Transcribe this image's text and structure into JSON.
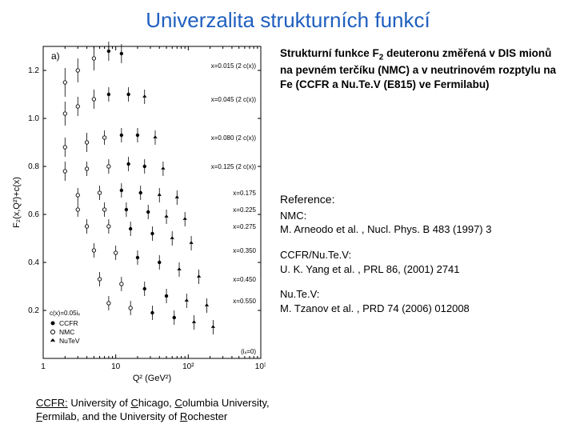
{
  "title": "Univerzalita strukturních funkcí",
  "description": {
    "line1a": "Strukturní funkce F",
    "subscript": "2",
    "line1b": " deuteronu změřená v DIS mionů na pevném terčíku (NMC) a v neutrinovém rozptylu na Fe (CCFR a Nu.Te.V (E815) ve Fermilabu)"
  },
  "references": {
    "header": "Reference:",
    "items": [
      {
        "name": "NMC:",
        "cite": "M. Arneodo et al. , Nucl. Phys. B 483 (1997) 3"
      },
      {
        "name": "CCFR/Nu.Te.V:",
        "cite": "U. K. Yang et al. , PRL 86, (2001) 2741"
      },
      {
        "name": "Nu.Te.V:",
        "cite": "M. Tzanov et al. , PRD 74 (2006) 012008"
      }
    ]
  },
  "footer": {
    "prefix": "CCFR:",
    "text1": " University of ",
    "u1": "C",
    "text2": "hicago, ",
    "u2": "C",
    "text3": "olumbia University, ",
    "u3": "F",
    "text4": "ermilab, and the University of ",
    "u4": "R",
    "text5": "ochester"
  },
  "chart": {
    "panel_label": "a)",
    "ylabel": "F₂(x,Q²)+c(x)",
    "xlabel": "Q² (GeV²)",
    "x_log_min": 1,
    "x_log_max": 1000,
    "x_ticks": [
      1,
      10,
      100,
      1000
    ],
    "x_tick_labels": [
      "1",
      "10",
      "10²",
      "10³"
    ],
    "ylim": [
      0,
      1.3
    ],
    "y_ticks": [
      0.2,
      0.4,
      0.6,
      0.8,
      1.0,
      1.2
    ],
    "background_color": "#ffffff",
    "axis_color": "#000000",
    "font_size_axis": 10,
    "font_size_annot": 8,
    "legend": {
      "title": "c(x)=0.05iₓ",
      "items": [
        {
          "marker": "filled-circle",
          "label": "CCFR"
        },
        {
          "marker": "open-circle",
          "label": "NMC"
        },
        {
          "marker": "star",
          "label": "NuTeV"
        }
      ],
      "ix_label": "(iₓ=0)"
    },
    "annotations": [
      {
        "text": "x=0.015  (2 c(x))",
        "y": 1.22
      },
      {
        "text": "x=0.045  (2 c(x))",
        "y": 1.08
      },
      {
        "text": "x=0.080  (2 c(x))",
        "y": 0.92
      },
      {
        "text": "x=0.125  (2 c(x))",
        "y": 0.8
      },
      {
        "text": "x=0.175",
        "y": 0.69
      },
      {
        "text": "x=0.225",
        "y": 0.62
      },
      {
        "text": "x=0.275",
        "y": 0.55
      },
      {
        "text": "x=0.350",
        "y": 0.45
      },
      {
        "text": "x=0.450",
        "y": 0.33
      },
      {
        "text": "x=0.550",
        "y": 0.24
      }
    ],
    "series": [
      {
        "y": 1.22,
        "pts": [
          {
            "q": 2,
            "v": 1.15,
            "e": 0.06,
            "m": "o"
          },
          {
            "q": 3,
            "v": 1.2,
            "e": 0.05,
            "m": "o"
          },
          {
            "q": 5,
            "v": 1.25,
            "e": 0.05,
            "m": "o"
          },
          {
            "q": 8,
            "v": 1.28,
            "e": 0.04,
            "m": "f"
          },
          {
            "q": 12,
            "v": 1.27,
            "e": 0.04,
            "m": "f"
          }
        ]
      },
      {
        "y": 1.08,
        "pts": [
          {
            "q": 2,
            "v": 1.02,
            "e": 0.05,
            "m": "o"
          },
          {
            "q": 3,
            "v": 1.05,
            "e": 0.04,
            "m": "o"
          },
          {
            "q": 5,
            "v": 1.08,
            "e": 0.04,
            "m": "o"
          },
          {
            "q": 8,
            "v": 1.1,
            "e": 0.03,
            "m": "f"
          },
          {
            "q": 15,
            "v": 1.1,
            "e": 0.03,
            "m": "f"
          },
          {
            "q": 25,
            "v": 1.09,
            "e": 0.03,
            "m": "s"
          }
        ]
      },
      {
        "y": 0.92,
        "pts": [
          {
            "q": 2,
            "v": 0.88,
            "e": 0.04,
            "m": "o"
          },
          {
            "q": 4,
            "v": 0.9,
            "e": 0.04,
            "m": "o"
          },
          {
            "q": 7,
            "v": 0.92,
            "e": 0.03,
            "m": "o"
          },
          {
            "q": 12,
            "v": 0.93,
            "e": 0.03,
            "m": "f"
          },
          {
            "q": 20,
            "v": 0.93,
            "e": 0.03,
            "m": "f"
          },
          {
            "q": 35,
            "v": 0.92,
            "e": 0.03,
            "m": "s"
          }
        ]
      },
      {
        "y": 0.8,
        "pts": [
          {
            "q": 2,
            "v": 0.78,
            "e": 0.04,
            "m": "o"
          },
          {
            "q": 4,
            "v": 0.79,
            "e": 0.03,
            "m": "o"
          },
          {
            "q": 8,
            "v": 0.8,
            "e": 0.03,
            "m": "o"
          },
          {
            "q": 15,
            "v": 0.81,
            "e": 0.03,
            "m": "f"
          },
          {
            "q": 25,
            "v": 0.8,
            "e": 0.03,
            "m": "f"
          },
          {
            "q": 45,
            "v": 0.79,
            "e": 0.03,
            "m": "s"
          }
        ]
      },
      {
        "y": 0.69,
        "pts": [
          {
            "q": 3,
            "v": 0.68,
            "e": 0.03,
            "m": "o"
          },
          {
            "q": 6,
            "v": 0.69,
            "e": 0.03,
            "m": "o"
          },
          {
            "q": 12,
            "v": 0.7,
            "e": 0.03,
            "m": "f"
          },
          {
            "q": 22,
            "v": 0.69,
            "e": 0.03,
            "m": "f"
          },
          {
            "q": 40,
            "v": 0.68,
            "e": 0.03,
            "m": "s"
          },
          {
            "q": 70,
            "v": 0.67,
            "e": 0.03,
            "m": "s"
          }
        ]
      },
      {
        "y": 0.62,
        "pts": [
          {
            "q": 3,
            "v": 0.62,
            "e": 0.03,
            "m": "o"
          },
          {
            "q": 7,
            "v": 0.62,
            "e": 0.03,
            "m": "o"
          },
          {
            "q": 14,
            "v": 0.62,
            "e": 0.03,
            "m": "f"
          },
          {
            "q": 28,
            "v": 0.61,
            "e": 0.03,
            "m": "f"
          },
          {
            "q": 50,
            "v": 0.59,
            "e": 0.03,
            "m": "s"
          },
          {
            "q": 90,
            "v": 0.58,
            "e": 0.03,
            "m": "s"
          }
        ]
      },
      {
        "y": 0.55,
        "pts": [
          {
            "q": 4,
            "v": 0.55,
            "e": 0.03,
            "m": "o"
          },
          {
            "q": 8,
            "v": 0.55,
            "e": 0.03,
            "m": "o"
          },
          {
            "q": 16,
            "v": 0.54,
            "e": 0.03,
            "m": "f"
          },
          {
            "q": 32,
            "v": 0.52,
            "e": 0.03,
            "m": "f"
          },
          {
            "q": 60,
            "v": 0.5,
            "e": 0.03,
            "m": "s"
          },
          {
            "q": 110,
            "v": 0.48,
            "e": 0.03,
            "m": "s"
          }
        ]
      },
      {
        "y": 0.45,
        "pts": [
          {
            "q": 5,
            "v": 0.45,
            "e": 0.03,
            "m": "o"
          },
          {
            "q": 10,
            "v": 0.44,
            "e": 0.03,
            "m": "o"
          },
          {
            "q": 20,
            "v": 0.42,
            "e": 0.03,
            "m": "f"
          },
          {
            "q": 40,
            "v": 0.4,
            "e": 0.03,
            "m": "f"
          },
          {
            "q": 75,
            "v": 0.37,
            "e": 0.03,
            "m": "s"
          },
          {
            "q": 140,
            "v": 0.34,
            "e": 0.03,
            "m": "s"
          }
        ]
      },
      {
        "y": 0.33,
        "pts": [
          {
            "q": 6,
            "v": 0.33,
            "e": 0.03,
            "m": "o"
          },
          {
            "q": 12,
            "v": 0.31,
            "e": 0.03,
            "m": "o"
          },
          {
            "q": 25,
            "v": 0.29,
            "e": 0.03,
            "m": "f"
          },
          {
            "q": 50,
            "v": 0.26,
            "e": 0.03,
            "m": "f"
          },
          {
            "q": 95,
            "v": 0.24,
            "e": 0.03,
            "m": "s"
          },
          {
            "q": 180,
            "v": 0.22,
            "e": 0.03,
            "m": "s"
          }
        ]
      },
      {
        "y": 0.24,
        "pts": [
          {
            "q": 8,
            "v": 0.23,
            "e": 0.03,
            "m": "o"
          },
          {
            "q": 16,
            "v": 0.21,
            "e": 0.03,
            "m": "o"
          },
          {
            "q": 32,
            "v": 0.19,
            "e": 0.03,
            "m": "f"
          },
          {
            "q": 64,
            "v": 0.17,
            "e": 0.03,
            "m": "f"
          },
          {
            "q": 120,
            "v": 0.15,
            "e": 0.03,
            "m": "s"
          },
          {
            "q": 220,
            "v": 0.13,
            "e": 0.03,
            "m": "s"
          }
        ]
      }
    ]
  }
}
